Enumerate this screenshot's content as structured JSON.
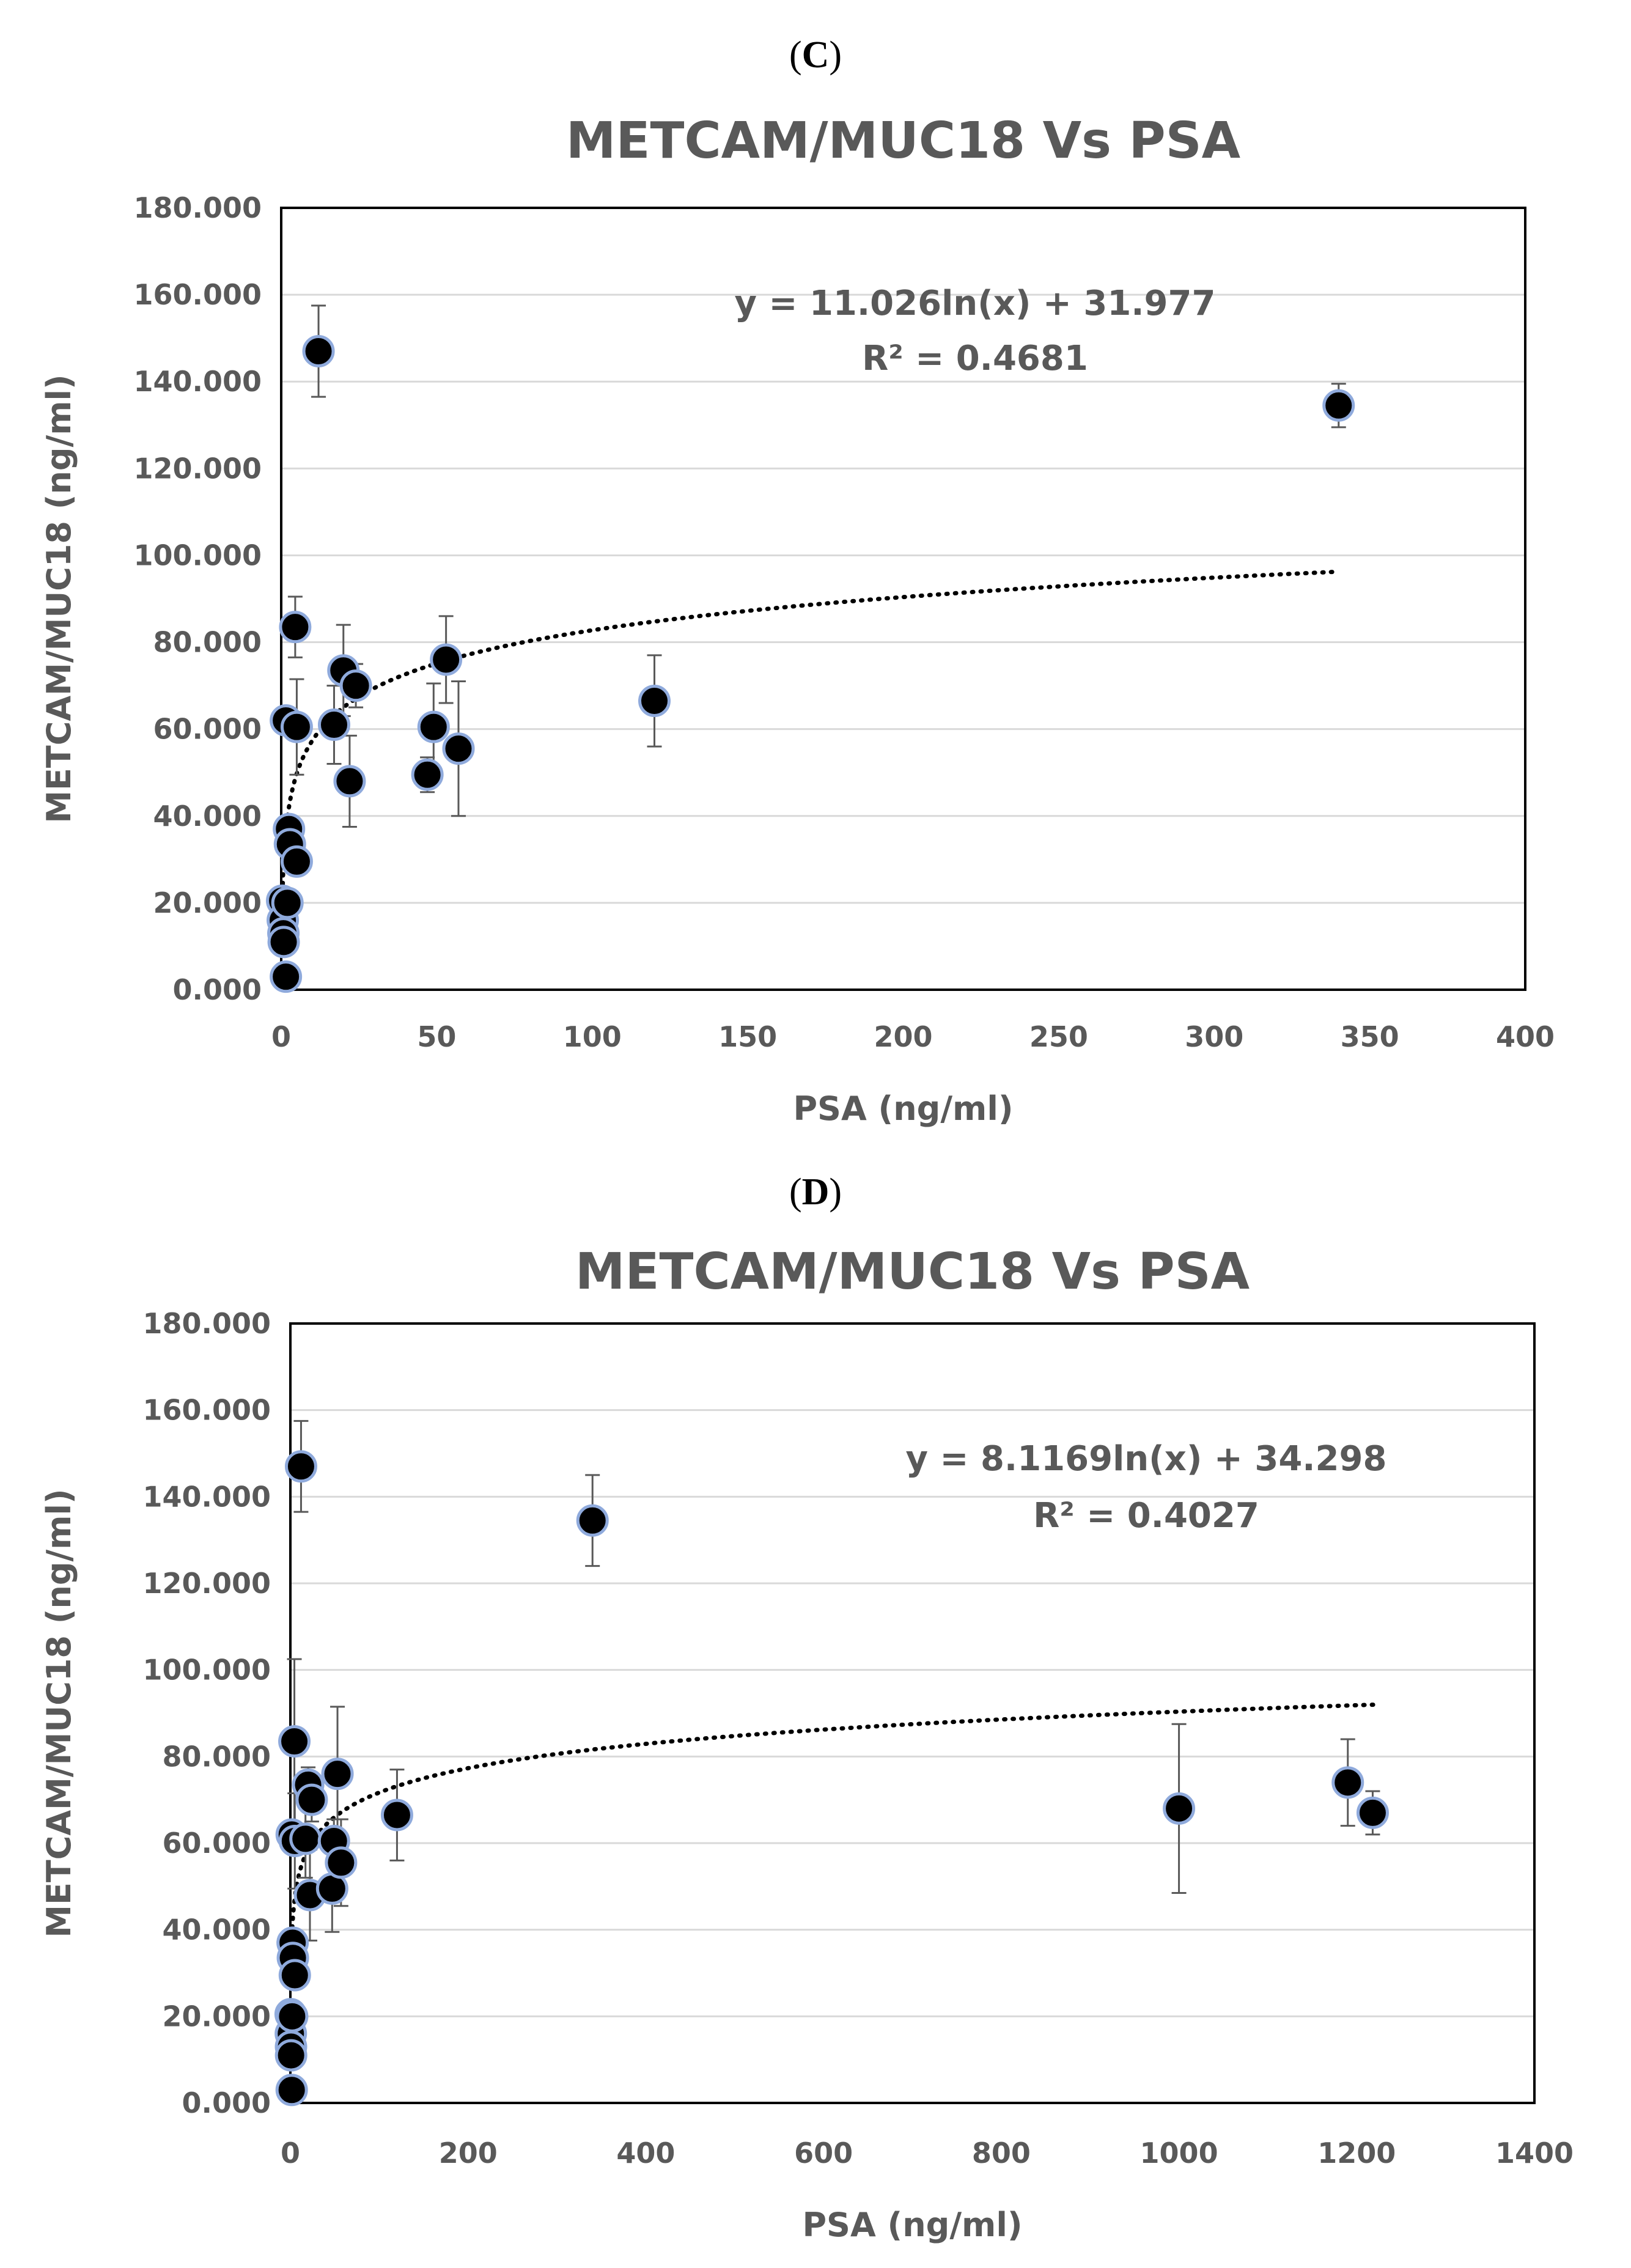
{
  "chart_data": [
    {
      "type": "scatter",
      "panel_label": "C",
      "title": "METCAM/MUC18 Vs PSA",
      "xlabel": "PSA (ng/ml)",
      "ylabel": "METCAM/MUC18  (ng/ml)",
      "xlim": [
        0,
        400
      ],
      "ylim": [
        0,
        180
      ],
      "xticks": [
        "0",
        "50",
        "100",
        "150",
        "200",
        "250",
        "300",
        "350",
        "400"
      ],
      "yticks": [
        "0.000",
        "20.000",
        "40.000",
        "60.000",
        "80.000",
        "100.000",
        "120.000",
        "140.000",
        "160.000",
        "180.000"
      ],
      "grid": true,
      "legend": "none",
      "trendline": {
        "kind": "logarithmic",
        "a": 11.026,
        "b": 31.977,
        "x_range": [
          0.5,
          340
        ],
        "equation": "y = 11.026ln(x) + 31.977",
        "r2": "R² = 0.4681"
      },
      "points": [
        {
          "x": 0.3,
          "y": 20.5,
          "err": 0
        },
        {
          "x": 0.5,
          "y": 16.0,
          "err": 0
        },
        {
          "x": 0.7,
          "y": 13.0,
          "err": 0
        },
        {
          "x": 0.8,
          "y": 11.0,
          "err": 0
        },
        {
          "x": 1.5,
          "y": 3.0,
          "err": 0
        },
        {
          "x": 1.5,
          "y": 62.0,
          "err": 0
        },
        {
          "x": 2.0,
          "y": 20.0,
          "err": 0
        },
        {
          "x": 2.5,
          "y": 37.0,
          "err": 0
        },
        {
          "x": 2.8,
          "y": 33.5,
          "err": 0
        },
        {
          "x": 4.5,
          "y": 83.5,
          "err": 7
        },
        {
          "x": 5.0,
          "y": 29.5,
          "err": 0
        },
        {
          "x": 5.0,
          "y": 60.5,
          "err": 11
        },
        {
          "x": 12.0,
          "y": 147.0,
          "err": 10.5
        },
        {
          "x": 17.0,
          "y": 61.0,
          "err": 9
        },
        {
          "x": 20.0,
          "y": 73.5,
          "err": 10.5
        },
        {
          "x": 22.0,
          "y": 48.0,
          "err": 10.5
        },
        {
          "x": 24.0,
          "y": 70.0,
          "err": 5
        },
        {
          "x": 47.0,
          "y": 49.5,
          "err": 4
        },
        {
          "x": 49.0,
          "y": 60.5,
          "err": 10
        },
        {
          "x": 53.0,
          "y": 76.0,
          "err": 10
        },
        {
          "x": 57.0,
          "y": 55.5,
          "err": 15.5
        },
        {
          "x": 120.0,
          "y": 66.5,
          "err": 10.5
        },
        {
          "x": 340.0,
          "y": 134.5,
          "err": 5
        }
      ]
    },
    {
      "type": "scatter",
      "panel_label": "D",
      "title": "METCAM/MUC18 Vs PSA",
      "xlabel": "PSA (ng/ml)",
      "ylabel": "METCAM/MUC18 (ng/ml)",
      "xlim": [
        0,
        1400
      ],
      "ylim": [
        0,
        180
      ],
      "xticks": [
        "0",
        "200",
        "400",
        "600",
        "800",
        "1000",
        "1200",
        "1400"
      ],
      "yticks": [
        "0.000",
        "20.000",
        "40.000",
        "60.000",
        "80.000",
        "100.000",
        "120.000",
        "140.000",
        "160.000",
        "180.000"
      ],
      "grid": true,
      "legend": "none",
      "trendline": {
        "kind": "logarithmic",
        "a": 8.1169,
        "b": 34.298,
        "x_range": [
          0.5,
          1220
        ],
        "equation": "y = 8.1169ln(x) + 34.298",
        "r2": "R² = 0.4027"
      },
      "points": [
        {
          "x": 0.3,
          "y": 20.5,
          "err": 0
        },
        {
          "x": 0.5,
          "y": 16.0,
          "err": 0
        },
        {
          "x": 0.7,
          "y": 13.0,
          "err": 0
        },
        {
          "x": 0.8,
          "y": 11.0,
          "err": 0
        },
        {
          "x": 1.5,
          "y": 3.0,
          "err": 0
        },
        {
          "x": 1.5,
          "y": 62.0,
          "err": 0
        },
        {
          "x": 2.0,
          "y": 20.0,
          "err": 0
        },
        {
          "x": 2.5,
          "y": 37.0,
          "err": 0
        },
        {
          "x": 2.8,
          "y": 33.5,
          "err": 0
        },
        {
          "x": 4.5,
          "y": 83.5,
          "err": 19
        },
        {
          "x": 5.0,
          "y": 29.5,
          "err": 0
        },
        {
          "x": 5.0,
          "y": 60.5,
          "err": 11
        },
        {
          "x": 12.0,
          "y": 147.0,
          "err": 10.5
        },
        {
          "x": 17.0,
          "y": 61.0,
          "err": 9
        },
        {
          "x": 20.0,
          "y": 73.5,
          "err": 4
        },
        {
          "x": 22.0,
          "y": 48.0,
          "err": 10.5
        },
        {
          "x": 24.0,
          "y": 70.0,
          "err": 5
        },
        {
          "x": 47.0,
          "y": 49.5,
          "err": 10
        },
        {
          "x": 49.0,
          "y": 60.5,
          "err": 5
        },
        {
          "x": 53.0,
          "y": 76.0,
          "err": 15.5
        },
        {
          "x": 57.0,
          "y": 55.5,
          "err": 10
        },
        {
          "x": 120.0,
          "y": 66.5,
          "err": 10.5
        },
        {
          "x": 340.0,
          "y": 134.5,
          "err": 10.5
        },
        {
          "x": 1000.0,
          "y": 68.0,
          "err": 19.5
        },
        {
          "x": 1190.0,
          "y": 74.0,
          "err": 10
        },
        {
          "x": 1218.0,
          "y": 67.0,
          "err": 5
        }
      ]
    }
  ]
}
